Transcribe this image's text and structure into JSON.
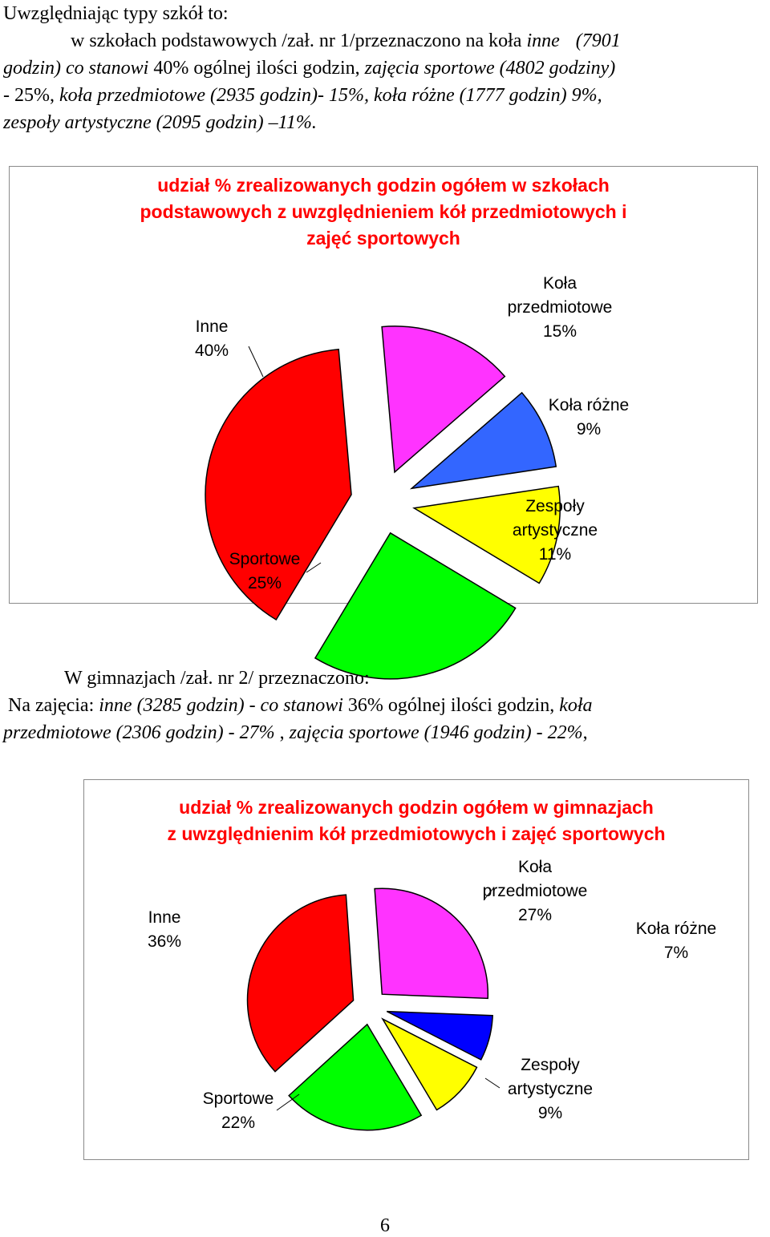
{
  "intro": {
    "heading": "Uwzględniając typy szkół to:",
    "school_line_prefix": "w szkołach podstawowych /zał. nr 1/przeznaczono na koła ",
    "p1_inne": "inne",
    "p1_inne_hours": "(7901",
    "p2_a": "godzin) co stanowi",
    "p2_b": " 40% ogólnej ilości godzin, ",
    "p2_c": "zajęcia sportowe (4802 godziny)",
    "p3_a": "- 25%, ",
    "p3_b": "koła przedmiotowe (2935 godzin)- 15%, koła różne (1777 godzin) 9%,",
    "p4_a": "zespoły artystyczne (2095 godzin) –11%."
  },
  "gim_text": {
    "line1": "W gimnazjach  /zał. nr 2/ przeznaczono:",
    "l2_a": "Na zajęcia: ",
    "l2_b": "inne  (3285 godzin) - co stanowi",
    "l2_c": "  36% ogólnej ilości godzin,  ",
    "l2_d": "koła",
    "l3_a": "przedmiotowe (2306 godzin) - 27%",
    "l3_b": " ,  ",
    "l3_c": "zajęcia sportowe (1946 godzin) - 22%",
    "l3_d": ","
  },
  "chart_data": [
    {
      "type": "pie",
      "title_lines": [
        "udział % zrealizowanych godzin ogółem w szkołach",
        "podstawowych z uwzględnieniem kół przedmiotowych i",
        "zajęć sportowych"
      ],
      "slices": [
        {
          "name_lines": [
            "Inne"
          ],
          "pct_label": "40%",
          "value": 40,
          "color": "#ff0000"
        },
        {
          "name_lines": [
            "Koła",
            "przedmiotowe"
          ],
          "pct_label": "15%",
          "value": 15,
          "color": "#ff33ff"
        },
        {
          "name_lines": [
            "Koła różne"
          ],
          "pct_label": "9%",
          "value": 9,
          "color": "#3366ff"
        },
        {
          "name_lines": [
            "Zespoły",
            "artystyczne"
          ],
          "pct_label": "11%",
          "value": 11,
          "color": "#ffff00"
        },
        {
          "name_lines": [
            "Sportowe"
          ],
          "pct_label": "25%",
          "value": 25,
          "color": "#00ff00"
        }
      ]
    },
    {
      "type": "pie",
      "title_lines": [
        "udział % zrealizowanych godzin ogółem w gimnazjach",
        "z uwzględnienim kół przedmiotowych i zajęć sportowych"
      ],
      "slices": [
        {
          "name_lines": [
            "Inne"
          ],
          "pct_label": "36%",
          "value": 36,
          "color": "#ff0000"
        },
        {
          "name_lines": [
            "Koła",
            "przedmiotowe"
          ],
          "pct_label": "27%",
          "value": 27,
          "color": "#ff33ff"
        },
        {
          "name_lines": [
            "Koła różne"
          ],
          "pct_label": "7%",
          "value": 7,
          "color": "#0000ff"
        },
        {
          "name_lines": [
            "Zespoły",
            "artystyczne"
          ],
          "pct_label": "9%",
          "value": 9,
          "color": "#ffff00"
        },
        {
          "name_lines": [
            "Sportowe"
          ],
          "pct_label": "22%",
          "value": 22,
          "color": "#00ff00"
        }
      ]
    }
  ],
  "page": {
    "number": "6"
  }
}
